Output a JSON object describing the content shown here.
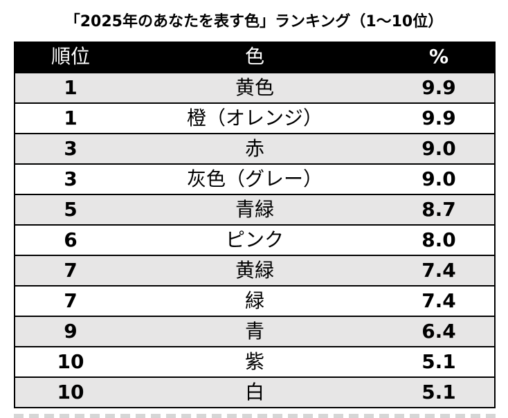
{
  "chart_data": {
    "type": "table",
    "title": "「2025年のあなたを表す色」ランキング（1〜10位）",
    "columns": [
      "順位",
      "色",
      "%"
    ],
    "rows": [
      [
        "1",
        "黄色",
        "9.9"
      ],
      [
        "1",
        "橙（オレンジ）",
        "9.9"
      ],
      [
        "3",
        "赤",
        "9.0"
      ],
      [
        "3",
        "灰色（グレー）",
        "9.0"
      ],
      [
        "5",
        "青緑",
        "8.7"
      ],
      [
        "6",
        "ピンク",
        "8.0"
      ],
      [
        "7",
        "黄緑",
        "7.4"
      ],
      [
        "7",
        "緑",
        "7.4"
      ],
      [
        "9",
        "青",
        "6.4"
      ],
      [
        "10",
        "紫",
        "5.1"
      ],
      [
        "10",
        "白",
        "5.1"
      ]
    ]
  },
  "colors": {
    "header_bg": "#000000",
    "header_text": "#ffffff",
    "row_alt_bg": "#e7e6e6",
    "row_bg": "#ffffff"
  }
}
